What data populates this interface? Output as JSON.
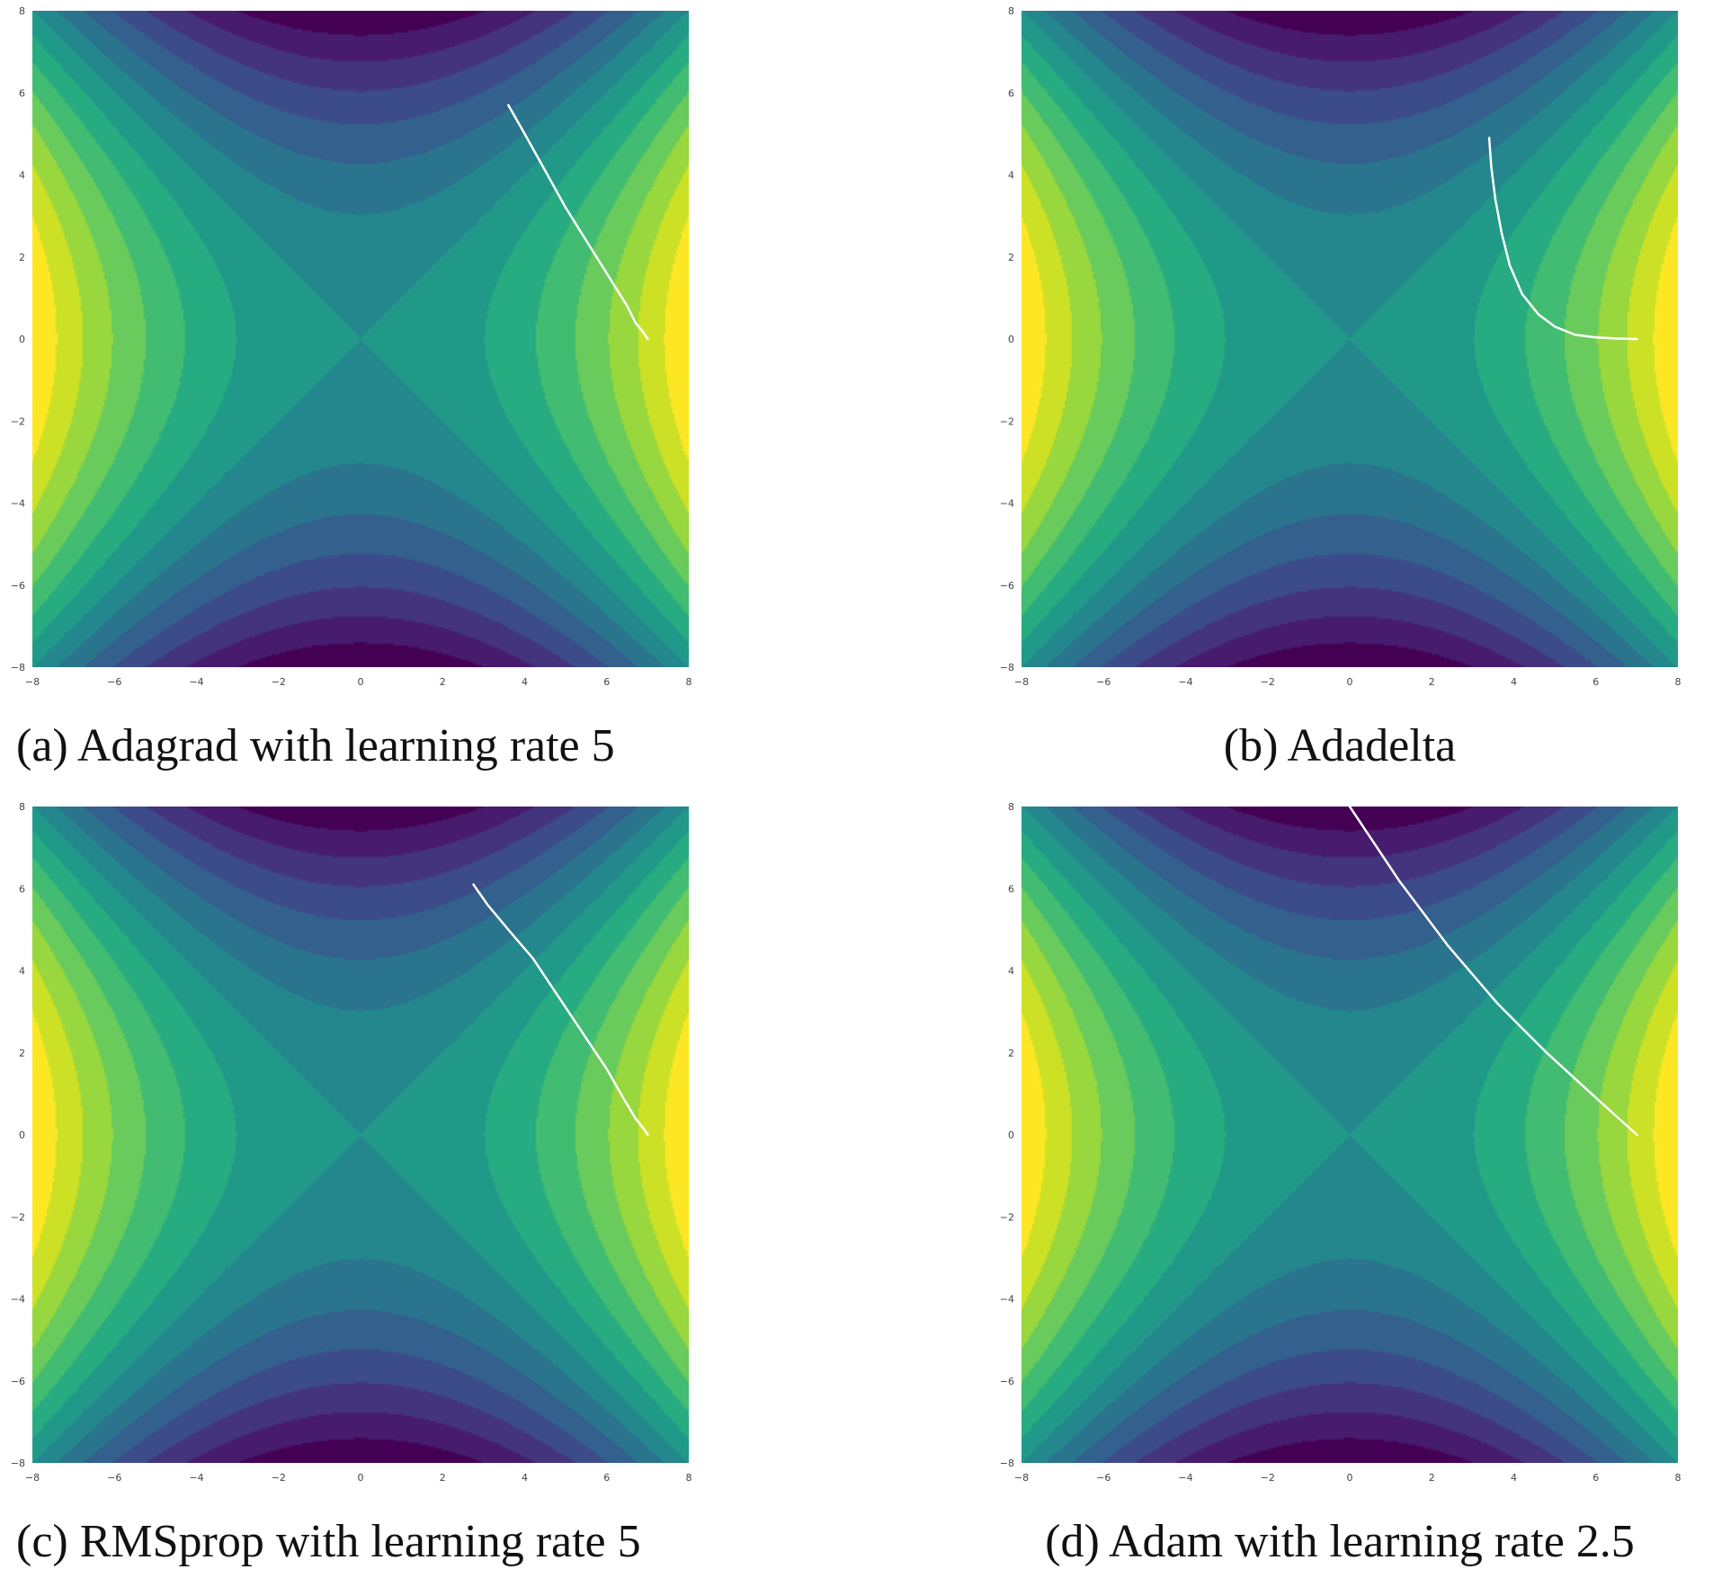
{
  "figure": {
    "panels": [
      {
        "caption": "(a) Adagrad with learning rate 5"
      },
      {
        "caption": "(b) Adadelta"
      },
      {
        "caption": "(c) RMSprop with learning rate 5"
      },
      {
        "caption": "(d) Adam with learning rate 2.5"
      }
    ]
  },
  "colors": {
    "colormap": "viridis",
    "trajectory": "#ffffff",
    "tick_text": "#444444"
  },
  "chart_data": [
    {
      "type": "contour",
      "function": "z = x^2 - y^2",
      "levels": 14,
      "xlim": [
        -8,
        8
      ],
      "ylim": [
        -8,
        8
      ],
      "xticks": [
        -8,
        -6,
        -4,
        -2,
        0,
        2,
        4,
        6,
        8
      ],
      "yticks": [
        -8,
        -6,
        -4,
        -2,
        0,
        2,
        4,
        6,
        8
      ],
      "xtick_labels": [
        "−8",
        "−6",
        "−4",
        "−2",
        "0",
        "2",
        "4",
        "6",
        "8"
      ],
      "ytick_labels": [
        "−8",
        "−6",
        "−4",
        "−2",
        "0",
        "2",
        "4",
        "6",
        "8"
      ],
      "grid": false,
      "caption": "(a) Adagrad with learning rate 5",
      "series": [
        {
          "x": [
            7.0,
            6.9,
            6.7,
            6.5,
            6.0,
            5.5,
            5.0,
            4.5,
            4.0,
            3.6
          ],
          "y": [
            0.0,
            0.15,
            0.4,
            0.8,
            1.6,
            2.4,
            3.2,
            4.1,
            5.0,
            5.7
          ]
        }
      ]
    },
    {
      "type": "contour",
      "function": "z = x^2 - y^2",
      "levels": 14,
      "xlim": [
        -8,
        8
      ],
      "ylim": [
        -8,
        8
      ],
      "xticks": [
        -8,
        -6,
        -4,
        -2,
        0,
        2,
        4,
        6,
        8
      ],
      "yticks": [
        -8,
        -6,
        -4,
        -2,
        0,
        2,
        4,
        6,
        8
      ],
      "xtick_labels": [
        "−8",
        "−6",
        "−4",
        "−2",
        "0",
        "2",
        "4",
        "6",
        "8"
      ],
      "ytick_labels": [
        "−8",
        "−6",
        "−4",
        "−2",
        "0",
        "2",
        "4",
        "6",
        "8"
      ],
      "grid": false,
      "caption": "(b) Adadelta",
      "series": [
        {
          "x": [
            7.0,
            6.5,
            6.0,
            5.5,
            5.0,
            4.6,
            4.2,
            3.9,
            3.7,
            3.55,
            3.45,
            3.4
          ],
          "y": [
            0.0,
            0.01,
            0.04,
            0.1,
            0.3,
            0.6,
            1.1,
            1.8,
            2.6,
            3.4,
            4.2,
            4.9
          ]
        }
      ]
    },
    {
      "type": "contour",
      "function": "z = x^2 - y^2",
      "levels": 14,
      "xlim": [
        -8,
        8
      ],
      "ylim": [
        -8,
        8
      ],
      "xticks": [
        -8,
        -6,
        -4,
        -2,
        0,
        2,
        4,
        6,
        8
      ],
      "yticks": [
        -8,
        -6,
        -4,
        -2,
        0,
        2,
        4,
        6,
        8
      ],
      "xtick_labels": [
        "−8",
        "−6",
        "−4",
        "−2",
        "0",
        "2",
        "4",
        "6",
        "8"
      ],
      "ytick_labels": [
        "−8",
        "−6",
        "−4",
        "−2",
        "0",
        "2",
        "4",
        "6",
        "8"
      ],
      "grid": false,
      "caption": "(c) RMSprop with learning rate 5",
      "series": [
        {
          "x": [
            7.0,
            6.9,
            6.7,
            6.4,
            6.0,
            5.4,
            4.8,
            4.2,
            3.6,
            3.1,
            2.75
          ],
          "y": [
            0.0,
            0.15,
            0.4,
            0.9,
            1.6,
            2.5,
            3.4,
            4.3,
            5.0,
            5.6,
            6.1
          ]
        }
      ]
    },
    {
      "type": "contour",
      "function": "z = x^2 - y^2",
      "levels": 14,
      "xlim": [
        -8,
        8
      ],
      "ylim": [
        -8,
        8
      ],
      "xticks": [
        -8,
        -6,
        -4,
        -2,
        0,
        2,
        4,
        6,
        8
      ],
      "yticks": [
        -8,
        -6,
        -4,
        -2,
        0,
        2,
        4,
        6,
        8
      ],
      "xtick_labels": [
        "−8",
        "−6",
        "−4",
        "−2",
        "0",
        "2",
        "4",
        "6",
        "8"
      ],
      "ytick_labels": [
        "−8",
        "−6",
        "−4",
        "−2",
        "0",
        "2",
        "4",
        "6",
        "8"
      ],
      "grid": false,
      "caption": "(d) Adam with learning rate 2.5",
      "series": [
        {
          "x": [
            7.0,
            6.5,
            6.0,
            5.4,
            4.8,
            4.2,
            3.6,
            3.0,
            2.4,
            1.8,
            1.2,
            0.6,
            0.0
          ],
          "y": [
            0.0,
            0.45,
            0.9,
            1.45,
            2.0,
            2.6,
            3.2,
            3.9,
            4.6,
            5.4,
            6.2,
            7.1,
            8.0
          ]
        }
      ]
    }
  ]
}
